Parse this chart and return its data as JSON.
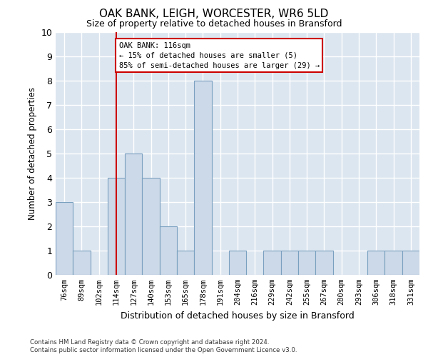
{
  "title": "OAK BANK, LEIGH, WORCESTER, WR6 5LD",
  "subtitle": "Size of property relative to detached houses in Bransford",
  "xlabel": "Distribution of detached houses by size in Bransford",
  "ylabel": "Number of detached properties",
  "categories": [
    "76sqm",
    "89sqm",
    "102sqm",
    "114sqm",
    "127sqm",
    "140sqm",
    "153sqm",
    "165sqm",
    "178sqm",
    "191sqm",
    "204sqm",
    "216sqm",
    "229sqm",
    "242sqm",
    "255sqm",
    "267sqm",
    "280sqm",
    "293sqm",
    "306sqm",
    "318sqm",
    "331sqm"
  ],
  "values": [
    3,
    1,
    0,
    4,
    5,
    4,
    2,
    1,
    8,
    0,
    1,
    0,
    1,
    1,
    1,
    1,
    0,
    0,
    1,
    1,
    1
  ],
  "bar_color": "#ccd9e8",
  "bar_edge_color": "#7aa0c0",
  "vline_x_index": 3,
  "vline_color": "#cc0000",
  "annotation_text": "OAK BANK: 116sqm\n← 15% of detached houses are smaller (5)\n85% of semi-detached houses are larger (29) →",
  "annotation_box_color": "white",
  "annotation_box_edge": "#cc0000",
  "ylim": [
    0,
    10
  ],
  "yticks": [
    0,
    1,
    2,
    3,
    4,
    5,
    6,
    7,
    8,
    9,
    10
  ],
  "footer_line1": "Contains HM Land Registry data © Crown copyright and database right 2024.",
  "footer_line2": "Contains public sector information licensed under the Open Government Licence v3.0.",
  "background_color": "#ffffff",
  "plot_background_color": "#dce6f0"
}
